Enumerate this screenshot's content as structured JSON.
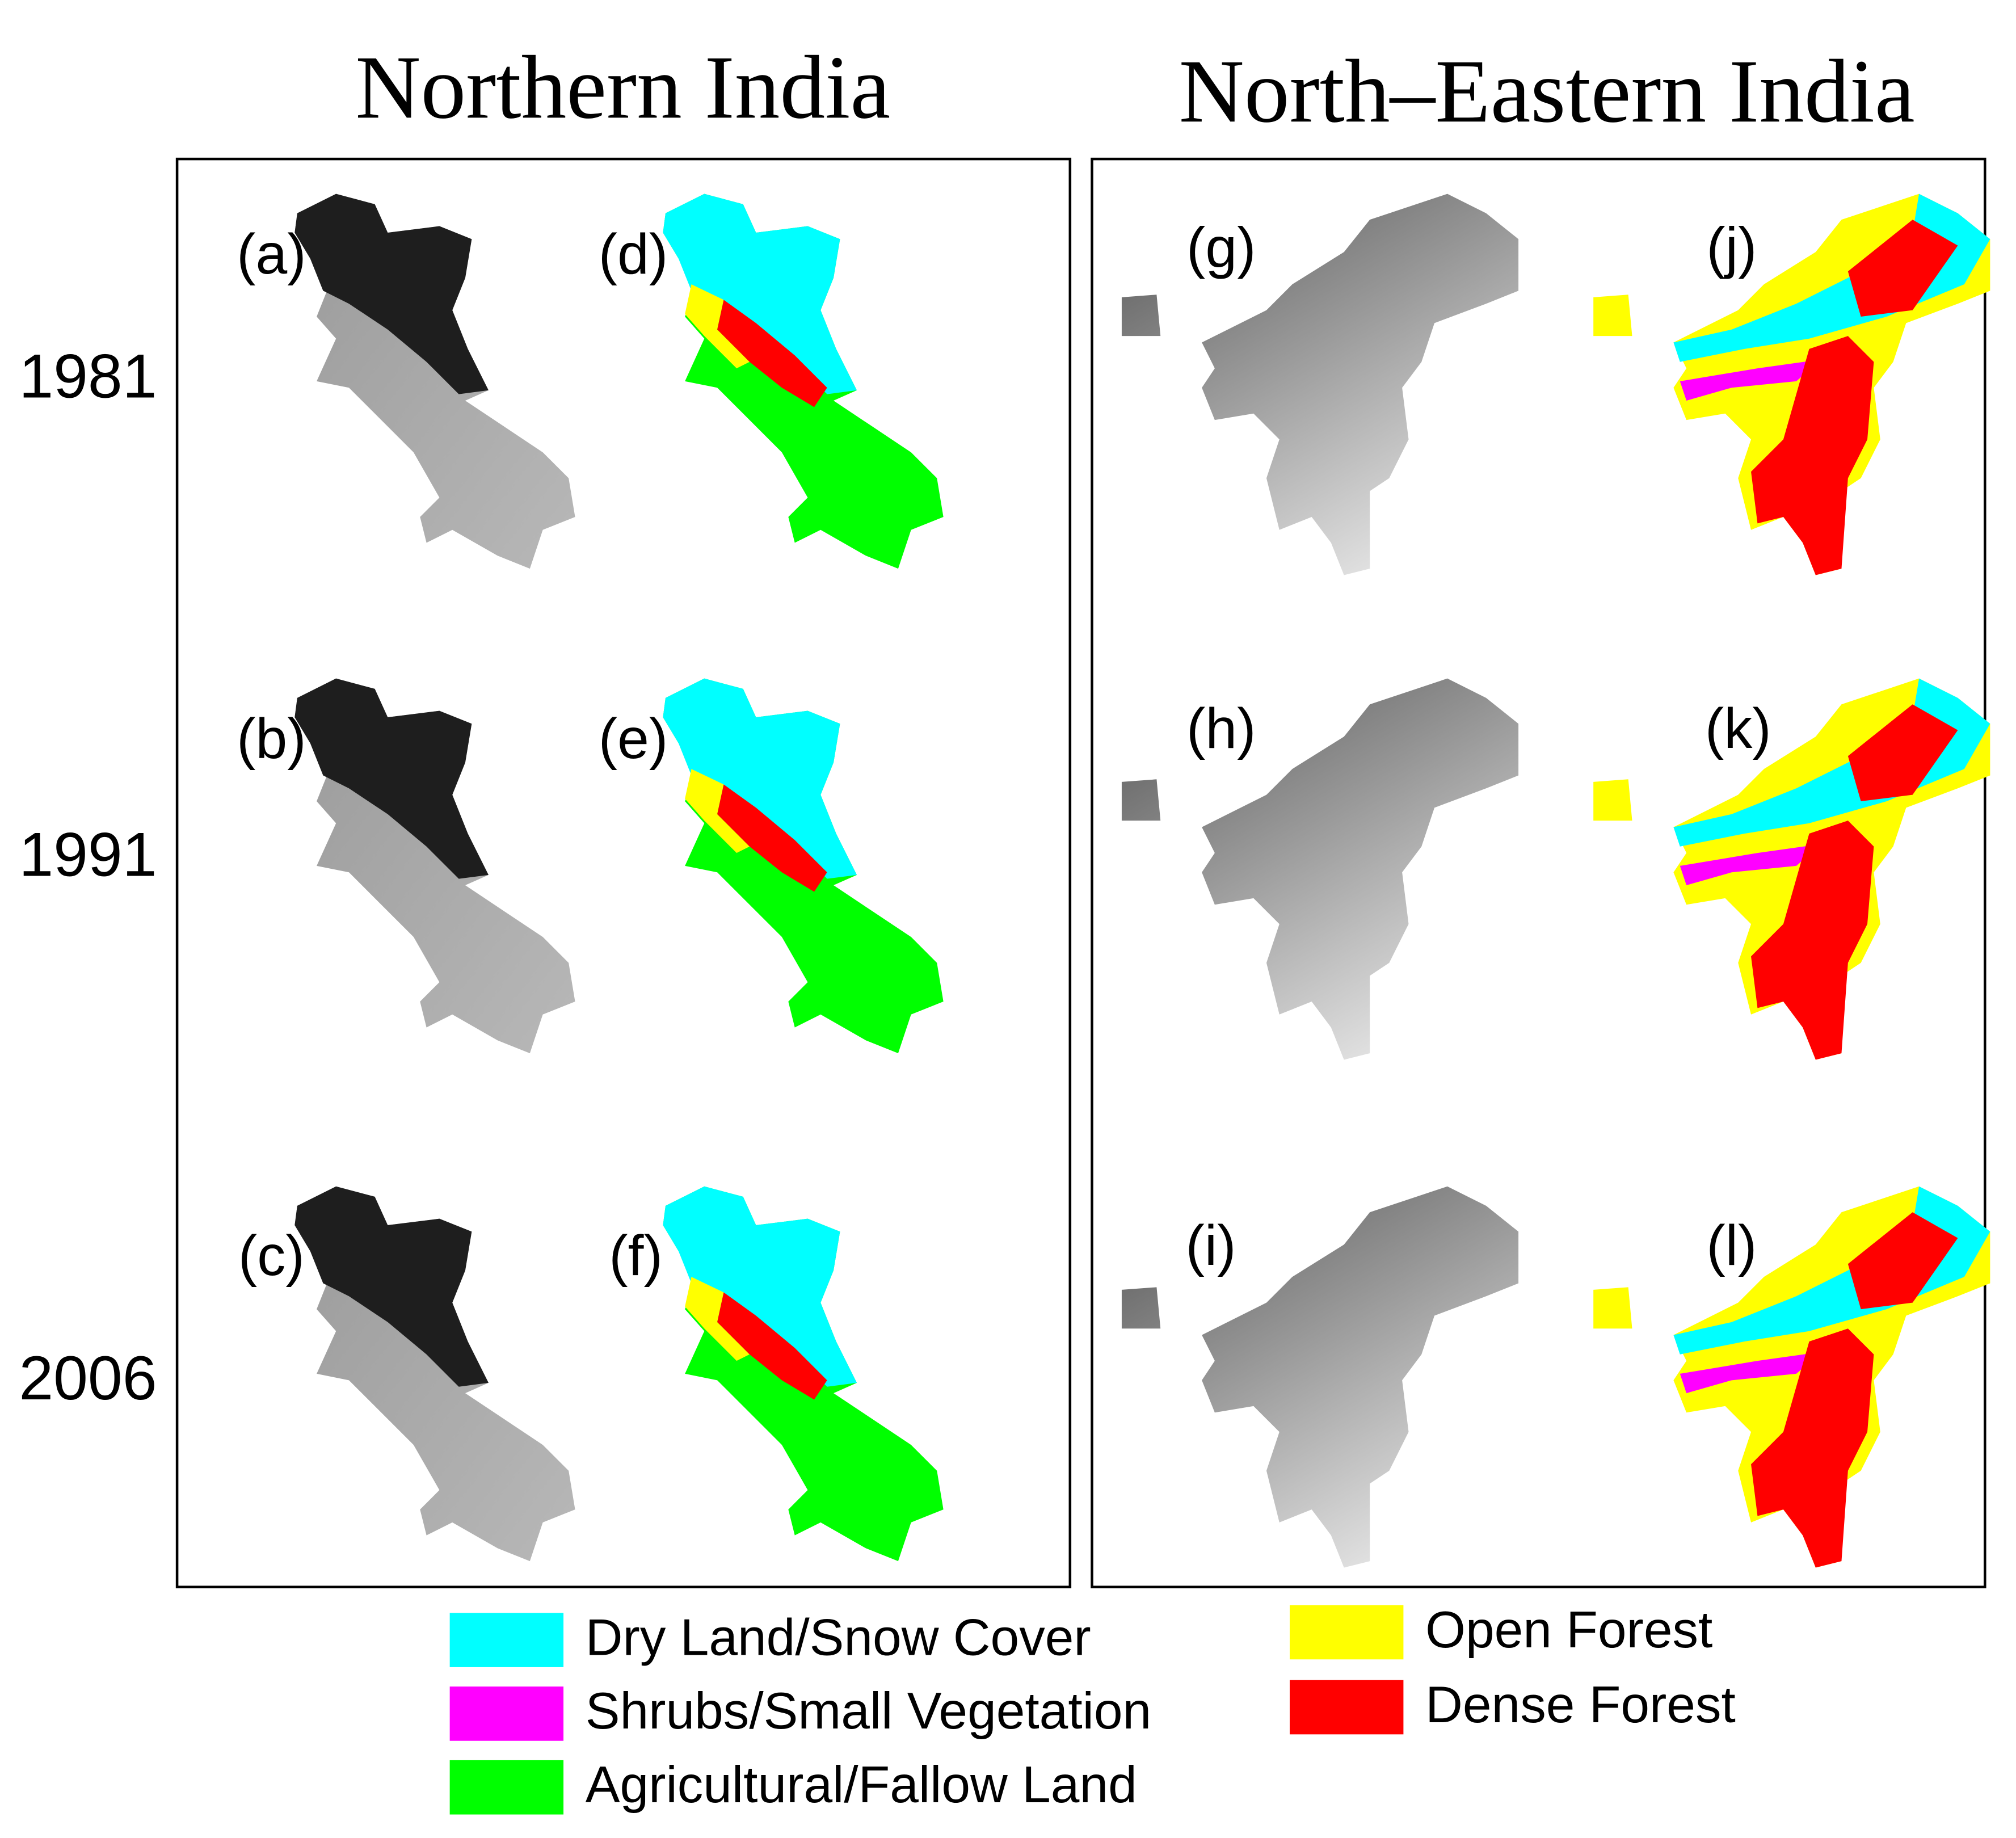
{
  "titles": [
    "Northern India",
    "North–Eastern  India"
  ],
  "years": [
    "1981",
    "1991",
    "2006"
  ],
  "panels": [
    "(a)",
    "(b)",
    "(c)",
    "(d)",
    "(e)",
    "(f)",
    "(g)",
    "(h)",
    "(i)",
    "(j)",
    "(k)",
    "(l)"
  ],
  "legend": [
    {
      "name": "Dry Land/Snow Cover",
      "color": "#00ffff"
    },
    {
      "name": "Shrubs/Small Vegetation",
      "color": "#ff00ff"
    },
    {
      "name": "Agricultural/Fallow Land",
      "color": "#00ff00"
    },
    {
      "name": "Open Forest",
      "color": "#ffff00"
    },
    {
      "name": "Dense Forest",
      "color": "#ff0000"
    }
  ]
}
